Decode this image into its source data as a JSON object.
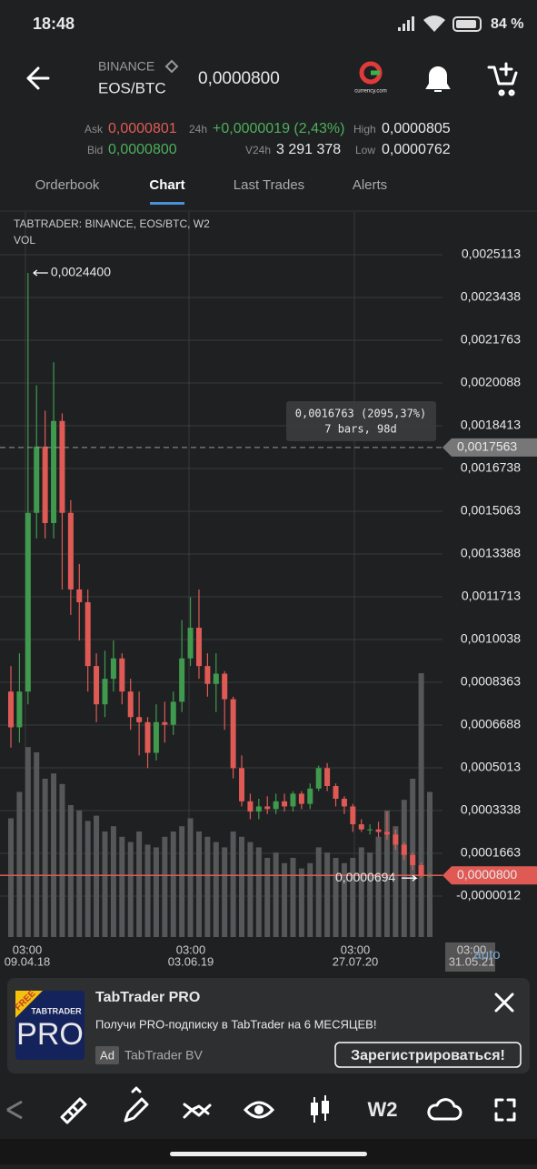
{
  "status_bar": {
    "time": "18:48",
    "battery": "84 %"
  },
  "header": {
    "exchange": "BINANCE",
    "pair": "EOS/BTC",
    "price": "0,0000800",
    "logo_text": "currency.com"
  },
  "ticker": {
    "ask_label": "Ask",
    "ask": "0,0000801",
    "bid_label": "Bid",
    "bid": "0,0000800",
    "change_label": "24h",
    "change": "+0,0000019 (2,43%)",
    "volume_label": "V24h",
    "volume": "3 291 378",
    "high_label": "High",
    "high": "0,0000805",
    "low_label": "Low",
    "low": "0,0000762"
  },
  "tabs": {
    "items": [
      "Orderbook",
      "Chart",
      "Last Trades",
      "Alerts"
    ],
    "active": 1
  },
  "chart": {
    "type": "candlestick",
    "title": "TABTRADER: BINANCE, EOS/BTC, W2",
    "volume_label": "VOL",
    "up_color": "#3f9a4e",
    "down_color": "#e05a55",
    "volume_color": "#555759",
    "open": [
      0.0008,
      0.00066,
      0.0008,
      0.0015,
      0.00176,
      0.00146,
      0.00186,
      0.0015,
      0.0012,
      0.00115,
      0.0009,
      0.00075,
      0.00085,
      0.00093,
      0.0008,
      0.0007,
      0.00068,
      0.00056,
      0.00068,
      0.00067,
      0.00076,
      0.00093,
      0.00105,
      0.0009,
      0.00083,
      0.00087,
      0.00077,
      0.0005,
      0.00037,
      0.00033,
      0.00035,
      0.00034,
      0.00037,
      0.00035,
      0.0004,
      0.00036,
      0.00042,
      0.0005,
      0.00043,
      0.00038,
      0.00035,
      0.00028,
      0.00026,
      0.00026,
      0.00025,
      0.00024,
      0.0002,
      0.00016,
      0.00012,
      8e-05
    ],
    "high": [
      0.0009,
      0.00095,
      0.00244,
      0.002,
      0.0019,
      0.00209,
      0.00189,
      0.00155,
      0.0013,
      0.0012,
      0.00095,
      0.00096,
      0.001,
      0.00095,
      0.00085,
      0.0008,
      0.0007,
      0.00075,
      0.00076,
      0.0008,
      0.00108,
      0.00117,
      0.0012,
      0.00095,
      0.00095,
      0.00088,
      0.00078,
      0.00055,
      0.0004,
      0.00038,
      0.00039,
      0.0004,
      0.0004,
      0.00041,
      0.00041,
      0.00044,
      0.00051,
      0.00052,
      0.00044,
      0.00039,
      0.00036,
      0.0003,
      0.00028,
      0.00029,
      0.00033,
      0.00026,
      0.00021,
      0.00017,
      0.00013,
      9e-05
    ],
    "low": [
      0.00058,
      0.0006,
      0.00075,
      0.0014,
      0.0014,
      0.0014,
      0.0012,
      0.0011,
      0.001,
      0.0008,
      0.00068,
      0.0007,
      0.0008,
      0.00075,
      0.00065,
      0.00055,
      0.0005,
      0.00053,
      0.0006,
      0.00063,
      0.00072,
      0.0009,
      0.00085,
      0.00078,
      0.00072,
      0.00065,
      0.00046,
      0.00035,
      0.0003,
      0.0003,
      0.00032,
      0.00032,
      0.00033,
      0.00033,
      0.00034,
      0.00034,
      0.00041,
      0.00041,
      0.00035,
      0.00032,
      0.00025,
      0.00025,
      0.00024,
      0.00023,
      0.00022,
      0.00018,
      0.00014,
      0.0001,
      7e-05,
      7e-05
    ],
    "close": [
      0.00066,
      0.0008,
      0.0015,
      0.00176,
      0.00146,
      0.00186,
      0.0015,
      0.0012,
      0.00115,
      0.0009,
      0.00075,
      0.00085,
      0.00093,
      0.0008,
      0.0007,
      0.00068,
      0.00056,
      0.00068,
      0.00067,
      0.00076,
      0.00093,
      0.00105,
      0.0009,
      0.00083,
      0.00087,
      0.00077,
      0.0005,
      0.00037,
      0.00033,
      0.00035,
      0.00034,
      0.00037,
      0.00035,
      0.0004,
      0.00036,
      0.00042,
      0.0005,
      0.00043,
      0.00038,
      0.00035,
      0.00028,
      0.00026,
      0.00026,
      0.00025,
      0.00024,
      0.0002,
      0.00016,
      0.00012,
      8e-05,
      8e-05
    ],
    "volume": [
      45,
      55,
      72,
      70,
      60,
      62,
      58,
      50,
      48,
      44,
      46,
      40,
      42,
      38,
      36,
      40,
      35,
      34,
      38,
      40,
      42,
      45,
      40,
      38,
      36,
      34,
      40,
      38,
      36,
      34,
      30,
      32,
      28,
      30,
      26,
      28,
      34,
      32,
      30,
      28,
      30,
      34,
      32,
      38,
      48,
      42,
      52,
      60,
      100,
      55
    ],
    "yticks": [
      {
        "value": 0.0025113,
        "label": "0,0025113"
      },
      {
        "value": 0.0023438,
        "label": "0,0023438"
      },
      {
        "value": 0.0021763,
        "label": "0,0021763"
      },
      {
        "value": 0.0020088,
        "label": "0,0020088"
      },
      {
        "value": 0.0018413,
        "label": "0,0018413"
      },
      {
        "value": 0.0016738,
        "label": "0,0016738"
      },
      {
        "value": 0.0015063,
        "label": "0,0015063"
      },
      {
        "value": 0.0013388,
        "label": "0,0013388"
      },
      {
        "value": 0.0011713,
        "label": "0,0011713"
      },
      {
        "value": 0.0010038,
        "label": "0,0010038"
      },
      {
        "value": 0.0008363,
        "label": "0,0008363"
      },
      {
        "value": 0.0006688,
        "label": "0,0006688"
      },
      {
        "value": 0.0005013,
        "label": "0,0005013"
      },
      {
        "value": 0.0003338,
        "label": "0,0003338"
      },
      {
        "value": 0.0001663,
        "label": "0,0001663"
      },
      {
        "value": -1.2e-06,
        "label": "-0,0000012"
      }
    ],
    "xticks": [
      {
        "time": "03:00",
        "date": "09.04.18"
      },
      {
        "time": "03:00",
        "date": "03.06.19"
      },
      {
        "time": "03:00",
        "date": "27.07.20"
      },
      {
        "time": "03:00",
        "date": "31.05.21"
      }
    ],
    "high_marker": {
      "value": 0.00244,
      "label": "0,0024400"
    },
    "low_marker": {
      "value": 6.94e-05,
      "label": "0,0000694"
    },
    "crosshair": {
      "value": 0.0017563,
      "label": "0,0017563"
    },
    "last_price": {
      "value": 8e-05,
      "label": "0,0000800"
    },
    "measure": {
      "change": "0,0016763 (2095,37%)",
      "span": "7 bars, 98d"
    },
    "scale_mode": "auto"
  },
  "ad": {
    "badge": "FREE",
    "logo_small": "TABTRADER",
    "logo_big": "PRO",
    "title": "TabTrader PRO",
    "text": "Получи PRO-подписку в TabTrader на 6 МЕСЯЦЕВ!",
    "ad_label": "Ad",
    "advertiser": "TabTrader BV",
    "button": "Зарегистрироваться!"
  },
  "toolbar": {
    "interval": "W2"
  }
}
